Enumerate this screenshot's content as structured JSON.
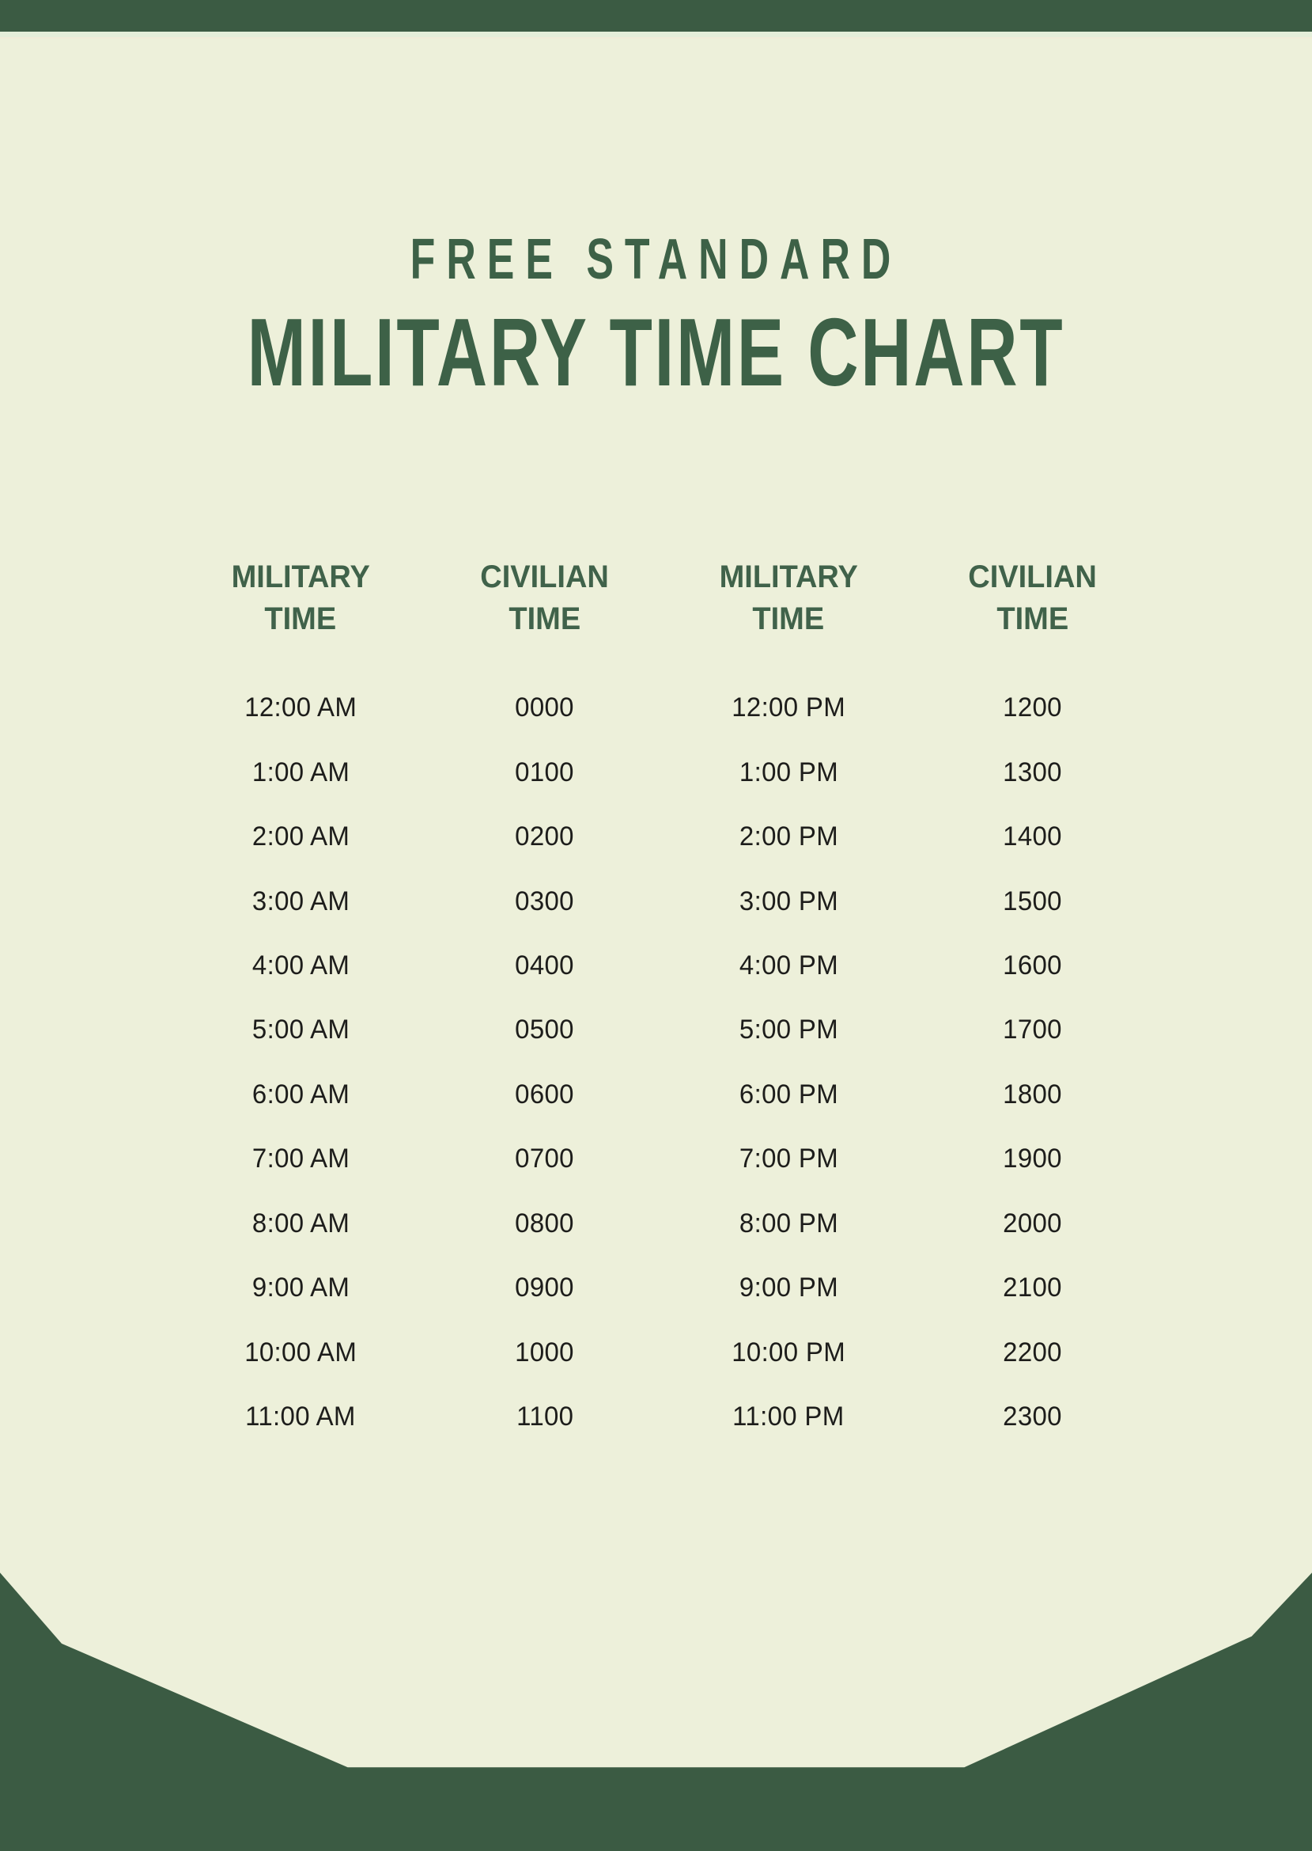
{
  "page": {
    "subtitle": "FREE STANDARD",
    "title": "MILITARY TIME CHART"
  },
  "colors": {
    "frame_green": "#3B5B43",
    "sheet_cream": "#EDF0DA",
    "accent_green": "#3D6147",
    "header_green": "#40624A",
    "data_text": "#1D1D1B"
  },
  "table": {
    "headers": [
      {
        "line1": "MILITARY",
        "line2": "TIME"
      },
      {
        "line1": "CIVILIAN",
        "line2": "TIME"
      },
      {
        "line1": "MILITARY",
        "line2": "TIME"
      },
      {
        "line1": "CIVILIAN",
        "line2": "TIME"
      }
    ],
    "rows": [
      {
        "cells": [
          "12:00 AM",
          "0000",
          "12:00 PM",
          "1200"
        ]
      },
      {
        "cells": [
          "1:00 AM",
          "0100",
          "1:00 PM",
          "1300"
        ]
      },
      {
        "cells": [
          "2:00 AM",
          "0200",
          "2:00 PM",
          "1400"
        ]
      },
      {
        "cells": [
          "3:00 AM",
          "0300",
          "3:00 PM",
          "1500"
        ]
      },
      {
        "cells": [
          "4:00 AM",
          "0400",
          "4:00 PM",
          "1600"
        ]
      },
      {
        "cells": [
          "5:00 AM",
          "0500",
          "5:00 PM",
          "1700"
        ]
      },
      {
        "cells": [
          "6:00 AM",
          "0600",
          "6:00 PM",
          "1800"
        ]
      },
      {
        "cells": [
          "7:00 AM",
          "0700",
          "7:00 PM",
          "1900"
        ]
      },
      {
        "cells": [
          "8:00 AM",
          "0800",
          "8:00 PM",
          "2000"
        ]
      },
      {
        "cells": [
          "9:00 AM",
          "0900",
          "9:00 PM",
          "2100"
        ]
      },
      {
        "cells": [
          "10:00 AM",
          "1000",
          "10:00 PM",
          "2200"
        ]
      },
      {
        "cells": [
          "11:00 AM",
          "1100",
          "11:00 PM",
          "2300"
        ]
      }
    ]
  }
}
